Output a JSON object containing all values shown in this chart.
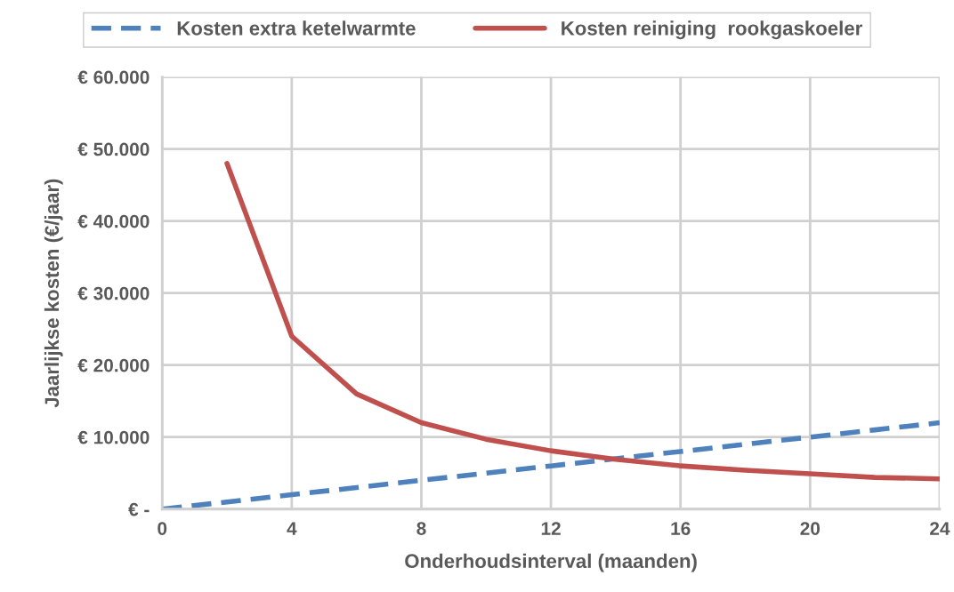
{
  "chart_data": {
    "type": "line",
    "xlabel": "Onderhoudsinterval (maanden)",
    "ylabel": "Jaarlijkse kosten (€/jaar)",
    "series": [
      {
        "name": "Kosten extra ketelwarmte",
        "color": "#4f81bd",
        "line_style": "dashed",
        "x": [
          0,
          2,
          4,
          6,
          8,
          10,
          12,
          14,
          16,
          18,
          20,
          22,
          24
        ],
        "values": [
          0,
          1000,
          2000,
          3000,
          4000,
          5000,
          6000,
          7000,
          8000,
          9000,
          10000,
          11000,
          12000
        ]
      },
      {
        "name": "Kosten reiniging  rookgaskoeler",
        "color": "#c0504d",
        "line_style": "solid",
        "x": [
          2,
          4,
          6,
          8,
          10,
          12,
          14,
          16,
          18,
          20,
          22,
          24
        ],
        "values": [
          48000,
          24000,
          16000,
          12000,
          9700,
          8100,
          6900,
          6000,
          5400,
          4900,
          4400,
          4200
        ]
      }
    ],
    "xlim": [
      0,
      24
    ],
    "xticks": [
      0,
      4,
      8,
      12,
      16,
      20,
      24
    ],
    "ylim": [
      0,
      60000
    ],
    "yticks": [
      {
        "value": 0,
        "label": "€ -"
      },
      {
        "value": 10000,
        "label": "€ 10.000"
      },
      {
        "value": 20000,
        "label": "€ 20.000"
      },
      {
        "value": 30000,
        "label": "€ 30.000"
      },
      {
        "value": 40000,
        "label": "€ 40.000"
      },
      {
        "value": 50000,
        "label": "€ 50.000"
      },
      {
        "value": 60000,
        "label": "€ 60.000"
      }
    ],
    "grid": true,
    "legend": "top",
    "marker": "none"
  }
}
